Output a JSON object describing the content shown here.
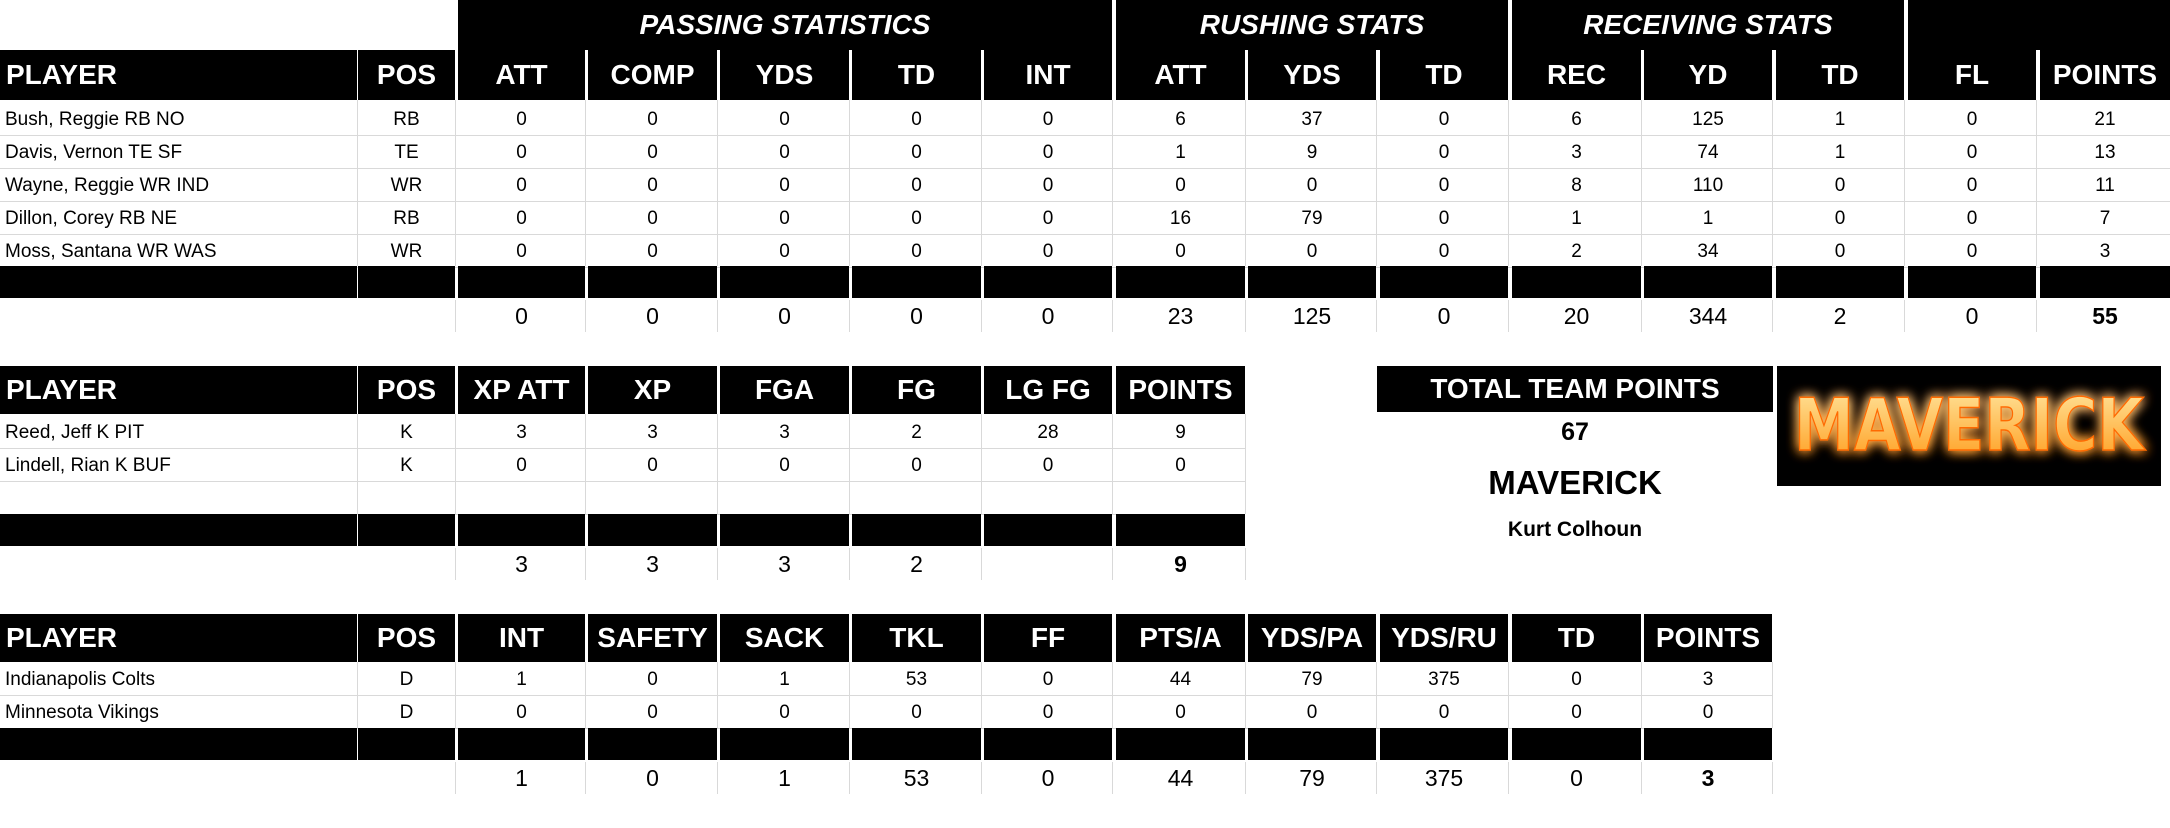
{
  "groups": {
    "passing": "PASSING STATISTICS",
    "rushing": "RUSHING STATS",
    "receiving": "RECEIVING STATS"
  },
  "offense": {
    "headers": [
      "PLAYER",
      "POS",
      "ATT",
      "COMP",
      "YDS",
      "TD",
      "INT",
      "ATT",
      "YDS",
      "TD",
      "REC",
      "YD",
      "TD",
      "FL",
      "POINTS"
    ],
    "rows": [
      [
        "Bush, Reggie RB NO",
        "RB",
        "0",
        "0",
        "0",
        "0",
        "0",
        "6",
        "37",
        "0",
        "6",
        "125",
        "1",
        "0",
        "21"
      ],
      [
        "Davis, Vernon TE SF",
        "TE",
        "0",
        "0",
        "0",
        "0",
        "0",
        "1",
        "9",
        "0",
        "3",
        "74",
        "1",
        "0",
        "13"
      ],
      [
        "Wayne, Reggie WR IND",
        "WR",
        "0",
        "0",
        "0",
        "0",
        "0",
        "0",
        "0",
        "0",
        "8",
        "110",
        "0",
        "0",
        "11"
      ],
      [
        "Dillon, Corey RB NE",
        "RB",
        "0",
        "0",
        "0",
        "0",
        "0",
        "16",
        "79",
        "0",
        "1",
        "1",
        "0",
        "0",
        "7"
      ],
      [
        "Moss, Santana WR WAS",
        "WR",
        "0",
        "0",
        "0",
        "0",
        "0",
        "0",
        "0",
        "0",
        "2",
        "34",
        "0",
        "0",
        "3"
      ]
    ],
    "totals": [
      "",
      "",
      "0",
      "0",
      "0",
      "0",
      "0",
      "23",
      "125",
      "0",
      "20",
      "344",
      "2",
      "0",
      "55"
    ]
  },
  "kicking": {
    "headers": [
      "PLAYER",
      "POS",
      "XP ATT",
      "XP",
      "FGA",
      "FG",
      "LG FG",
      "POINTS"
    ],
    "rows": [
      [
        "Reed, Jeff K PIT",
        "K",
        "3",
        "3",
        "3",
        "2",
        "28",
        "9"
      ],
      [
        "Lindell, Rian K BUF",
        "K",
        "0",
        "0",
        "0",
        "0",
        "0",
        "0"
      ]
    ],
    "totals": [
      "",
      "",
      "3",
      "3",
      "3",
      "2",
      "",
      "9"
    ]
  },
  "defense": {
    "headers": [
      "PLAYER",
      "POS",
      "INT",
      "SAFETY",
      "SACK",
      "TKL",
      "FF",
      "PTS/A",
      "YDS/PA",
      "YDS/RU",
      "TD",
      "POINTS"
    ],
    "rows": [
      [
        "Indianapolis Colts",
        "D",
        "1",
        "0",
        "1",
        "53",
        "0",
        "44",
        "79",
        "375",
        "0",
        "3"
      ],
      [
        "Minnesota Vikings",
        "D",
        "0",
        "0",
        "0",
        "0",
        "0",
        "0",
        "0",
        "0",
        "0",
        "0"
      ]
    ],
    "totals": [
      "",
      "",
      "1",
      "0",
      "1",
      "53",
      "0",
      "44",
      "79",
      "375",
      "0",
      "3"
    ]
  },
  "team": {
    "total_label": "TOTAL TEAM POINTS",
    "total_points": "67",
    "name": "MAVERICK",
    "owner": "Kurt Colhoun",
    "logo_text": "MAVERICK",
    "logo_color": "#ffb040"
  }
}
